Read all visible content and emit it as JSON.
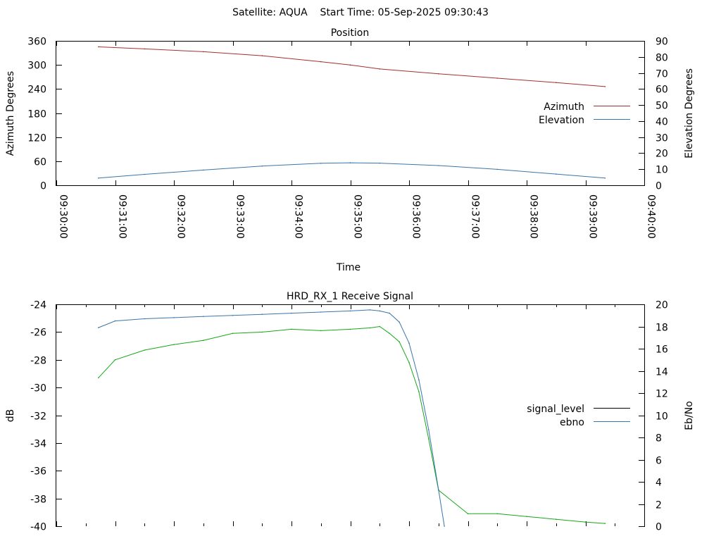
{
  "header": {
    "title": "Satellite: AQUA    Start Time: 05-Sep-2025 09:30:43"
  },
  "colors": {
    "azimuth": "#a5302f",
    "elevation": "#3a76a8",
    "signal_level": "#000000",
    "ebno": "#3a76a8",
    "signal_dark_red": "#a51414",
    "signal_green": "#17a817"
  },
  "chart_data": [
    {
      "type": "line",
      "title": "Position",
      "xlabel": "Time",
      "ylabel": "Azimuth Degrees",
      "y2label": "Elevation Degrees",
      "xlim": [
        "09:30:00",
        "09:40:00"
      ],
      "xticks": [
        "09:30:00",
        "09:31:00",
        "09:32:00",
        "09:33:00",
        "09:34:00",
        "09:35:00",
        "09:36:00",
        "09:37:00",
        "09:38:00",
        "09:39:00",
        "09:40:00"
      ],
      "ylim": [
        0,
        360
      ],
      "yticks": [
        "0",
        "60",
        "120",
        "180",
        "240",
        "300",
        "360"
      ],
      "y2lim": [
        0,
        90
      ],
      "y2ticks": [
        "0",
        "10",
        "20",
        "30",
        "40",
        "50",
        "60",
        "70",
        "80",
        "90"
      ],
      "legend_position": "right",
      "series": [
        {
          "name": "Azimuth",
          "axis": "y",
          "x": [
            "09:30:43",
            "09:31:30",
            "09:32:30",
            "09:33:30",
            "09:34:30",
            "09:35:00",
            "09:35:30",
            "09:36:30",
            "09:37:30",
            "09:38:30",
            "09:39:20"
          ],
          "values": [
            345,
            340,
            333,
            323,
            308,
            300,
            290,
            278,
            267,
            256,
            246
          ]
        },
        {
          "name": "Elevation",
          "axis": "y2",
          "x": [
            "09:30:43",
            "09:31:30",
            "09:32:30",
            "09:33:30",
            "09:34:30",
            "09:35:00",
            "09:35:30",
            "09:36:30",
            "09:37:30",
            "09:38:30",
            "09:39:20"
          ],
          "values": [
            4.5,
            6.8,
            9.5,
            12.0,
            13.7,
            14.0,
            13.8,
            12.3,
            9.9,
            7.0,
            4.5
          ]
        }
      ]
    },
    {
      "type": "line",
      "title": "HRD_RX_1 Receive Signal",
      "ylabel": "dB",
      "y2label": "Eb/No",
      "xlim": [
        "09:30:00",
        "09:40:00"
      ],
      "ylim": [
        -40,
        -24
      ],
      "yticks": [
        "-24",
        "-26",
        "-28",
        "-30",
        "-32",
        "-34",
        "-36",
        "-38",
        "-40"
      ],
      "y2lim": [
        0,
        20
      ],
      "y2ticks": [
        "0",
        "2",
        "4",
        "6",
        "8",
        "10",
        "12",
        "14",
        "16",
        "18",
        "20"
      ],
      "legend_position": "right",
      "series": [
        {
          "name": "signal_level",
          "axis": "y",
          "x": [
            "09:30:43",
            "09:31:00",
            "09:31:30",
            "09:32:00",
            "09:32:30",
            "09:33:00",
            "09:33:30",
            "09:34:00",
            "09:34:30",
            "09:35:00",
            "09:35:20",
            "09:35:30",
            "09:35:40",
            "09:35:50",
            "09:36:00",
            "09:36:10",
            "09:36:20",
            "09:36:30",
            "09:37:00",
            "09:37:30",
            "09:38:00",
            "09:38:30",
            "09:39:00",
            "09:39:20"
          ],
          "values": [
            -29.3,
            -28.0,
            -27.3,
            -26.9,
            -26.6,
            -26.1,
            -26.0,
            -25.8,
            -25.9,
            -25.8,
            -25.7,
            -25.6,
            -26.1,
            -26.7,
            -28.2,
            -30.3,
            -33.7,
            -37.4,
            -39.1,
            -39.1,
            -39.3,
            -39.5,
            -39.7,
            -39.8
          ]
        },
        {
          "name": "ebno",
          "axis": "y2",
          "x": [
            "09:30:43",
            "09:31:00",
            "09:31:30",
            "09:32:00",
            "09:32:30",
            "09:33:00",
            "09:33:30",
            "09:34:00",
            "09:34:30",
            "09:35:00",
            "09:35:20",
            "09:35:30",
            "09:35:40",
            "09:35:50",
            "09:36:00",
            "09:36:10",
            "09:36:20",
            "09:36:30",
            "09:36:36"
          ],
          "values": [
            17.9,
            18.5,
            18.7,
            18.8,
            18.9,
            19.0,
            19.1,
            19.2,
            19.3,
            19.4,
            19.5,
            19.4,
            19.2,
            18.4,
            16.5,
            13.2,
            8.7,
            3.3,
            0.0
          ]
        }
      ]
    }
  ]
}
